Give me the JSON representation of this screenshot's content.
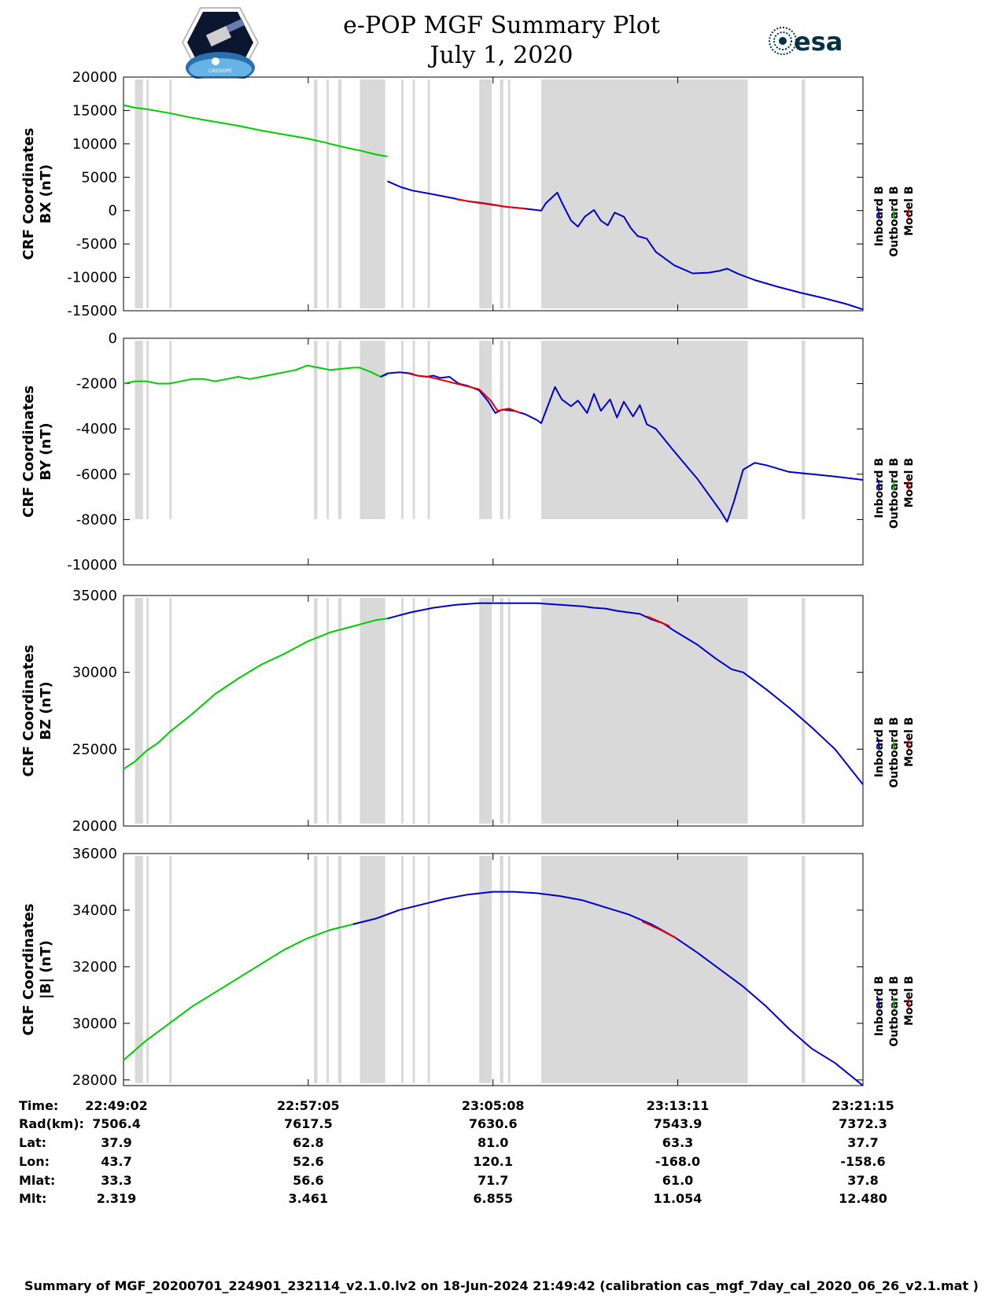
{
  "header": {
    "title_line1": "e-POP MGF Summary Plot",
    "title_line2": "July 1, 2020",
    "logo_left_icon": "cassiope-satellite-logo",
    "logo_left_text": "CASSIOPE",
    "logo_right_icon": "esa-logo",
    "logo_right_text": "esa"
  },
  "colors": {
    "inboard": "#0000cc",
    "outboard": "#00cc00",
    "model": "#ee0000",
    "shade": "#d9d9d9"
  },
  "chart_data": {
    "type": "line",
    "x": {
      "unit": "minutes since 22:49:02",
      "range": [
        0,
        32.22
      ],
      "tick_values": [
        0,
        8.05,
        16.1,
        24.15,
        32.22
      ],
      "tick_labels": [
        "22:49:02",
        "22:57:05",
        "23:05:08",
        "23:13:11",
        "23:21:15"
      ]
    },
    "legend": [
      "Inboard B",
      "Outboard B",
      "Model B"
    ],
    "legend_placement": "right",
    "shaded_intervals": [
      [
        0.5,
        0.85
      ],
      [
        1.0,
        1.1
      ],
      [
        2.0,
        2.1
      ],
      [
        8.3,
        8.45
      ],
      [
        8.85,
        8.95
      ],
      [
        9.35,
        9.5
      ],
      [
        10.3,
        10.9
      ],
      [
        10.9,
        11.4
      ],
      [
        12.1,
        12.2
      ],
      [
        12.6,
        12.7
      ],
      [
        13.25,
        13.35
      ],
      [
        15.5,
        15.7
      ],
      [
        15.7,
        16.05
      ],
      [
        16.4,
        16.55
      ],
      [
        16.75,
        16.85
      ],
      [
        18.2,
        27.2
      ],
      [
        29.55,
        29.7
      ]
    ],
    "panels": [
      {
        "ylabel_line1": "CRF Coordinates",
        "ylabel_line2": "BX (nT)",
        "ylim": [
          -15000,
          20000
        ],
        "yticks": [
          20000,
          15000,
          10000,
          5000,
          0,
          -5000,
          -10000,
          -15000
        ],
        "series": [
          {
            "name": "Outboard B",
            "x": [
              0,
              0.5,
              1,
              2,
              3,
              4,
              5,
              6,
              7,
              7.5,
              8,
              8.4,
              8.8,
              9,
              9.5,
              10,
              10.3,
              11,
              11.5
            ],
            "values": [
              15800,
              15400,
              15200,
              14600,
              13900,
              13300,
              12700,
              12000,
              11400,
              11100,
              10800,
              10500,
              10200,
              10000,
              9600,
              9200,
              9000,
              8400,
              8100
            ]
          },
          {
            "name": "Inboard B",
            "x": [
              11.5,
              12.1,
              12.6,
              13.4,
              14.3,
              15,
              15.5,
              16.1,
              16.6,
              17.5,
              18.2,
              18.4,
              18.9,
              19.1,
              19.5,
              19.8,
              20.1,
              20.5,
              20.8,
              21.1,
              21.4,
              21.8,
              22.1,
              22.4,
              22.8,
              23.2,
              24,
              24.8,
              25.5,
              26,
              26.3,
              26.8,
              27.5,
              28.5,
              29.5,
              30.5,
              31.5,
              32.22
            ],
            "values": [
              4400,
              3500,
              3000,
              2500,
              1900,
              1400,
              1200,
              900,
              600,
              300,
              0,
              1100,
              2700,
              1200,
              -1500,
              -2400,
              -900,
              100,
              -1500,
              -2200,
              -300,
              -900,
              -2600,
              -3800,
              -4200,
              -6200,
              -8200,
              -9400,
              -9300,
              -9000,
              -8700,
              -9500,
              -10400,
              -11400,
              -12300,
              -13100,
              -14000,
              -14800
            ]
          },
          {
            "name": "Model B",
            "x": [
              14.5,
              15.2,
              15.8,
              16.6,
              17.5
            ],
            "values": [
              1700,
              1300,
              1000,
              600,
              300
            ]
          }
        ]
      },
      {
        "ylabel_line1": "CRF Coordinates",
        "ylabel_line2": "BY (nT)",
        "ylim": [
          -10000,
          0
        ],
        "yticks": [
          0,
          -2000,
          -4000,
          -6000,
          -8000,
          -10000
        ],
        "series": [
          {
            "name": "Outboard B",
            "x": [
              0,
              0.5,
              1,
              1.5,
              2,
              2.5,
              3,
              3.5,
              4,
              4.5,
              5,
              5.5,
              6,
              6.5,
              7,
              7.5,
              8,
              8.5,
              9,
              9.5,
              10,
              10.3,
              10.8,
              11.2,
              11.5
            ],
            "values": [
              -2000,
              -1900,
              -1900,
              -2000,
              -2000,
              -1900,
              -1800,
              -1800,
              -1900,
              -1800,
              -1700,
              -1800,
              -1700,
              -1600,
              -1500,
              -1400,
              -1200,
              -1300,
              -1400,
              -1350,
              -1300,
              -1300,
              -1500,
              -1700,
              -1600
            ]
          },
          {
            "name": "Inboard B",
            "x": [
              11.2,
              11.5,
              12,
              12.5,
              12.8,
              13.2,
              13.5,
              13.8,
              14.2,
              14.6,
              15,
              15.5,
              15.9,
              16.2,
              16.5,
              17,
              17.5,
              18,
              18.2,
              18.8,
              19.1,
              19.5,
              19.8,
              20.2,
              20.5,
              20.8,
              21.2,
              21.5,
              21.8,
              22.2,
              22.5,
              22.8,
              23.2,
              24,
              25,
              25.5,
              26,
              26.3,
              26.6,
              27,
              27.5,
              28,
              29,
              30,
              31,
              32.22
            ],
            "values": [
              -1700,
              -1550,
              -1500,
              -1550,
              -1650,
              -1700,
              -1650,
              -1750,
              -1700,
              -2000,
              -2100,
              -2300,
              -2800,
              -3300,
              -3150,
              -3200,
              -3350,
              -3600,
              -3750,
              -2150,
              -2700,
              -3000,
              -2750,
              -3300,
              -2450,
              -3200,
              -2700,
              -3500,
              -2800,
              -3450,
              -2950,
              -3800,
              -4000,
              -5000,
              -6200,
              -6900,
              -7600,
              -8100,
              -7200,
              -5800,
              -5500,
              -5600,
              -5900,
              -6000,
              -6100,
              -6250
            ]
          },
          {
            "name": "Model B",
            "x": [
              12.4,
              12.8,
              13.3,
              15.5,
              16.0,
              16.3,
              16.8,
              17.3
            ],
            "values": [
              -1550,
              -1650,
              -1700,
              -2250,
              -2750,
              -3200,
              -3100,
              -3300
            ]
          }
        ]
      },
      {
        "ylabel_line1": "CRF Coordinates",
        "ylabel_line2": "BZ (nT)",
        "ylim": [
          20000,
          35000
        ],
        "yticks": [
          35000,
          30000,
          25000,
          20000
        ],
        "series": [
          {
            "name": "Outboard B",
            "x": [
              0,
              0.5,
              1,
              1.5,
              2,
              3,
              4,
              5,
              6,
              7,
              8,
              9,
              10,
              10.5,
              11,
              11.5
            ],
            "values": [
              23700,
              24200,
              24900,
              25400,
              26100,
              27300,
              28600,
              29600,
              30500,
              31200,
              32000,
              32600,
              33000,
              33200,
              33400,
              33500
            ]
          },
          {
            "name": "Inboard B",
            "x": [
              11.5,
              12.5,
              13.5,
              14.5,
              15.5,
              16.1,
              17,
              18,
              19,
              19.5,
              20,
              20.5,
              21,
              21.5,
              22,
              22.5,
              23,
              23.5,
              24,
              25,
              25.8,
              26.5,
              27,
              28,
              29,
              30,
              31,
              32.22
            ],
            "values": [
              33500,
              33900,
              34200,
              34400,
              34500,
              34500,
              34500,
              34500,
              34400,
              34350,
              34300,
              34200,
              34150,
              34000,
              33900,
              33800,
              33450,
              33200,
              32700,
              31800,
              30900,
              30200,
              30000,
              28900,
              27700,
              26400,
              25000,
              22700
            ]
          },
          {
            "name": "Model B",
            "x": [
              22.8,
              23.2,
              23.8
            ],
            "values": [
              33650,
              33400,
              33000
            ]
          }
        ]
      },
      {
        "ylabel_line1": "CRF Coordinates",
        "ylabel_line2": "|B| (nT)",
        "ylim": [
          27800,
          36000
        ],
        "yticks": [
          36000,
          34000,
          32000,
          30000,
          28000
        ],
        "series": [
          {
            "name": "Outboard B",
            "x": [
              0,
              1,
              2,
              3,
              4,
              5,
              6,
              7,
              8,
              9,
              10,
              11
            ],
            "values": [
              28700,
              29400,
              30000,
              30600,
              31100,
              31600,
              32100,
              32600,
              33000,
              33300,
              33500,
              33700
            ]
          },
          {
            "name": "Inboard B",
            "x": [
              10,
              11,
              12,
              13,
              14,
              15,
              16.1,
              17,
              18,
              19,
              20,
              21,
              22,
              23,
              24,
              25,
              26,
              27,
              28,
              29,
              30,
              31,
              32.22
            ],
            "values": [
              33500,
              33700,
              34000,
              34200,
              34400,
              34550,
              34650,
              34650,
              34600,
              34500,
              34350,
              34100,
              33850,
              33500,
              33050,
              32500,
              31900,
              31300,
              30600,
              29800,
              29100,
              28600,
              27800
            ]
          },
          {
            "name": "Model B",
            "x": [
              22.6,
              23.4,
              24.1
            ],
            "values": [
              33600,
              33300,
              33000
            ]
          }
        ]
      }
    ]
  },
  "info_table": {
    "labels": [
      "Time:",
      "Rad(km):",
      "Lat:",
      "Lon:",
      "Mlat:",
      "Mlt:"
    ],
    "columns": [
      [
        "22:49:02",
        "7506.4",
        "37.9",
        "43.7",
        "33.3",
        "2.319"
      ],
      [
        "22:57:05",
        "7617.5",
        "62.8",
        "52.6",
        "56.6",
        "3.461"
      ],
      [
        "23:05:08",
        "7630.6",
        "81.0",
        "120.1",
        "71.7",
        "6.855"
      ],
      [
        "23:13:11",
        "7543.9",
        "63.3",
        "-168.0",
        "61.0",
        "11.054"
      ],
      [
        "23:21:15",
        "7372.3",
        "37.7",
        "-158.6",
        "37.8",
        "12.480"
      ]
    ]
  },
  "footer": "Summary of MGF_20200701_224901_232114_v2.1.0.lv2 on 18-Jun-2024 21:49:42 (calibration cas_mgf_7day_cal_2020_06_26_v2.1.mat )"
}
